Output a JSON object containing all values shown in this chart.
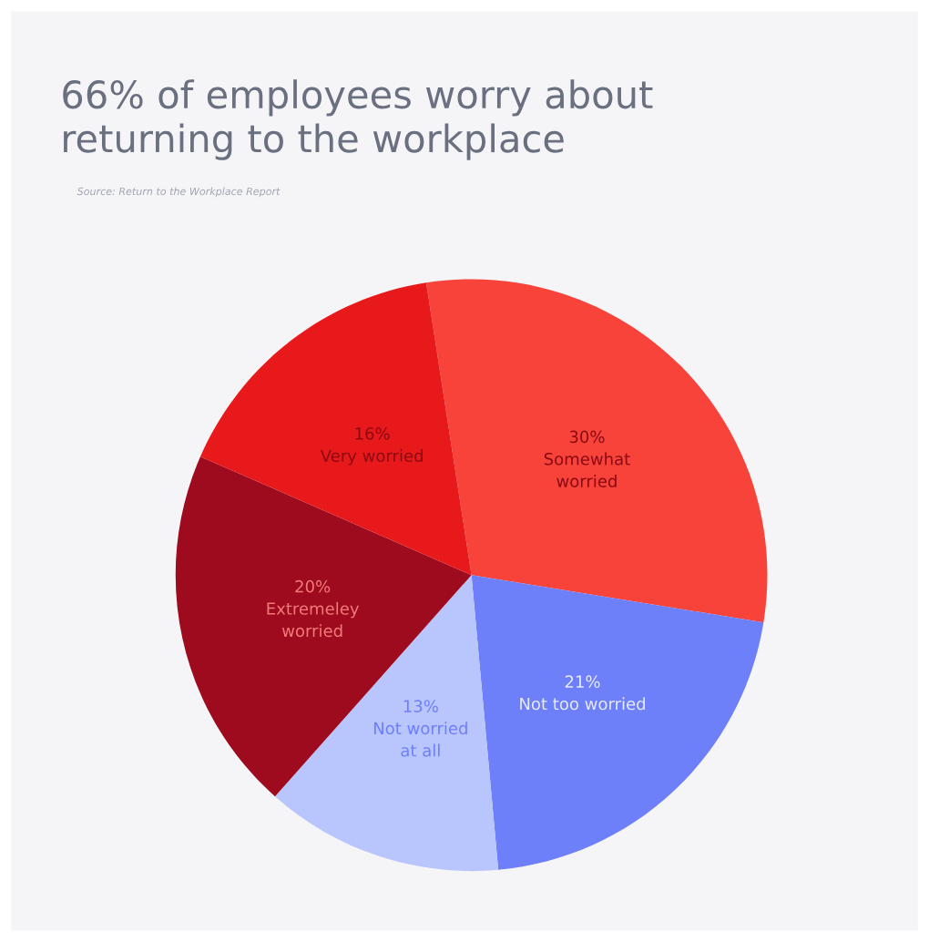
{
  "chart_data": {
    "type": "pie",
    "title": "66% of employees worry about\nreturning to the workplace",
    "annotations": [
      "Source: Return to the Workplace Report"
    ],
    "categories": [
      "Somewhat\nworried",
      "Not too worried",
      "Not worried\nat all",
      "Extremeley\nworried",
      "Very worried"
    ],
    "values": [
      30,
      21,
      13,
      20,
      16
    ],
    "colors": [
      "#f7433a",
      "#6e7ffa",
      "#b9c5fd",
      "#9e0b1f",
      "#e8191b"
    ],
    "value_labels": [
      "30%",
      "21%",
      "13%",
      "20%",
      "16%"
    ]
  }
}
